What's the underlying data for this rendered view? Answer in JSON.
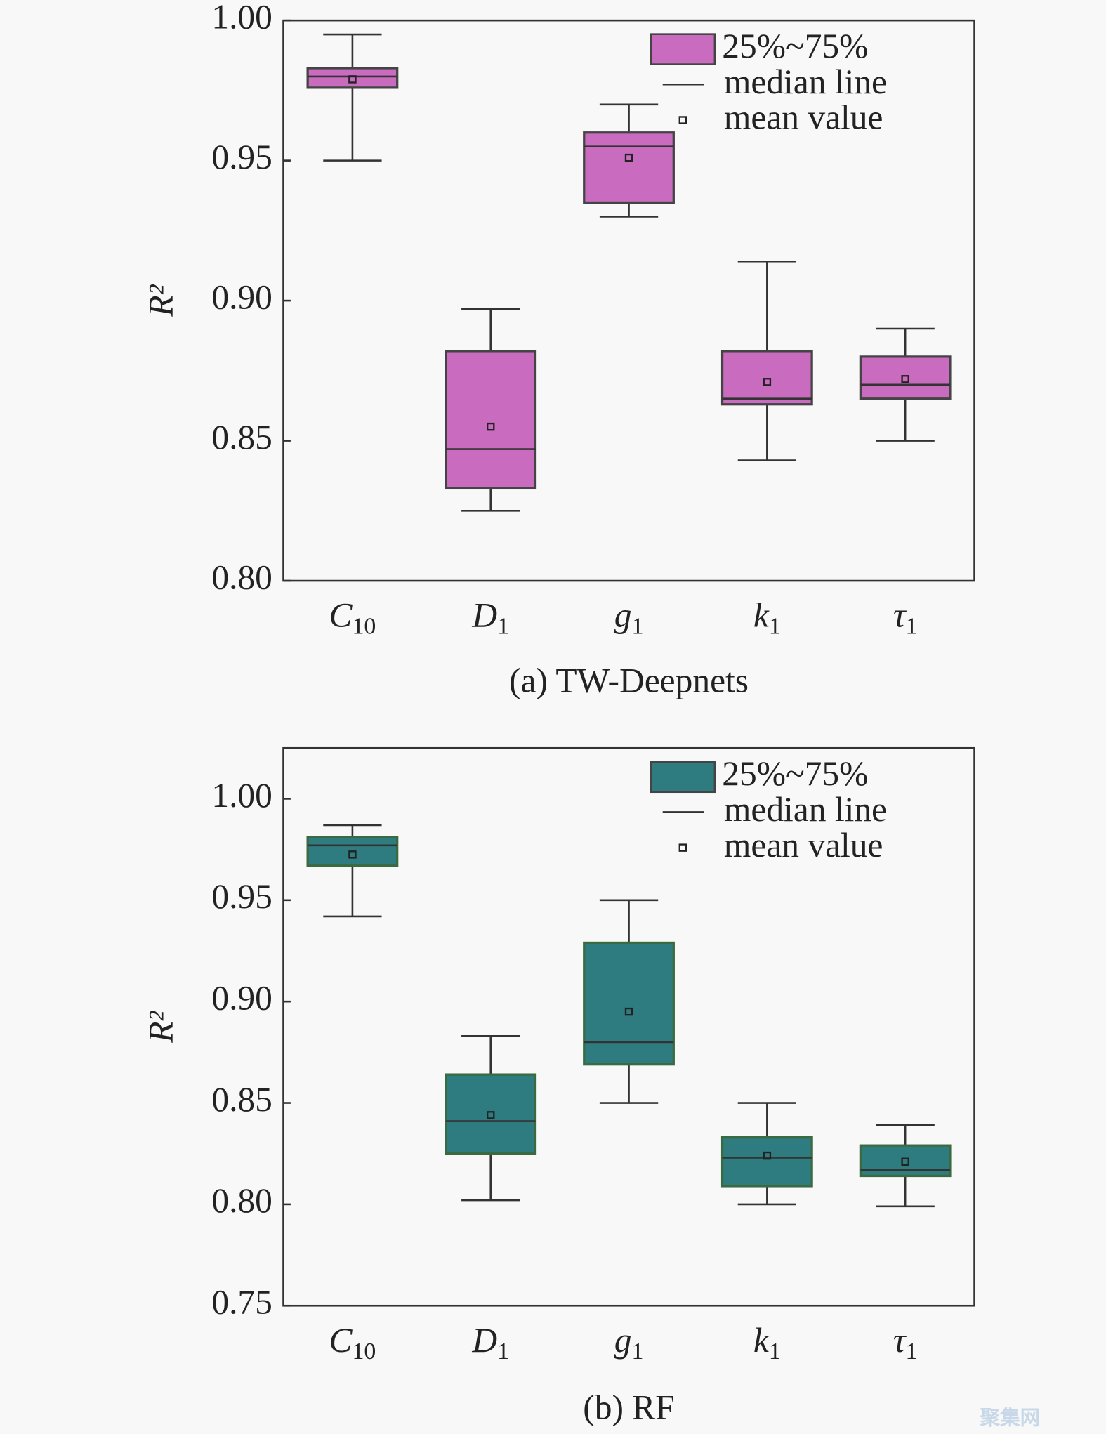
{
  "chart_data": [
    {
      "type": "box",
      "title": "(a) TW-Deepnets",
      "y_label": "R²",
      "categories": [
        "C10",
        "D1",
        "g1",
        "k1",
        "τ1"
      ],
      "legend": [
        "25%~75%",
        "median line",
        "mean value"
      ],
      "color": "#c96bbf",
      "edge_color": "#444444",
      "whisker_high": [
        0.995,
        0.897,
        0.97,
        0.914,
        0.89
      ],
      "q3": [
        0.983,
        0.882,
        0.96,
        0.882,
        0.88
      ],
      "median": [
        0.98,
        0.847,
        0.955,
        0.865,
        0.87
      ],
      "q1": [
        0.976,
        0.833,
        0.935,
        0.863,
        0.865
      ],
      "whisker_low": [
        0.95,
        0.825,
        0.93,
        0.843,
        0.85
      ],
      "mean": [
        0.979,
        0.855,
        0.951,
        0.871,
        0.872
      ],
      "ylim": [
        0.8,
        1.0
      ],
      "yticks": [
        {
          "value": 0.8,
          "label": "0.80"
        },
        0.85,
        {
          "value": 0.9,
          "label": "0.90"
        },
        0.95,
        {
          "value": 1.0,
          "label": "1.00"
        }
      ]
    },
    {
      "type": "box",
      "title": "(b) RF",
      "y_label": "R²",
      "categories": [
        "C10",
        "D1",
        "g1",
        "k1",
        "τ1"
      ],
      "legend": [
        "25%~75%",
        "median line",
        "mean value"
      ],
      "color": "#2f7c80",
      "edge_color": "#3a6a40",
      "whisker_high": [
        0.987,
        0.883,
        0.95,
        0.85,
        0.839
      ],
      "q3": [
        0.981,
        0.864,
        0.929,
        0.833,
        0.829
      ],
      "median": [
        0.977,
        0.841,
        0.88,
        0.823,
        0.817
      ],
      "q1": [
        0.967,
        0.825,
        0.869,
        0.809,
        0.814
      ],
      "whisker_low": [
        0.942,
        0.802,
        0.85,
        0.8,
        0.799
      ],
      "mean": [
        0.9725,
        0.844,
        0.895,
        0.824,
        0.821
      ],
      "ylim": [
        0.75,
        1.025
      ],
      "yticks": [
        0.75,
        {
          "value": 0.8,
          "label": "0.80"
        },
        0.85,
        {
          "value": 0.9,
          "label": "0.90"
        },
        0.95,
        {
          "value": 1.0,
          "label": "1.00"
        }
      ]
    }
  ],
  "watermark": "聚集网"
}
